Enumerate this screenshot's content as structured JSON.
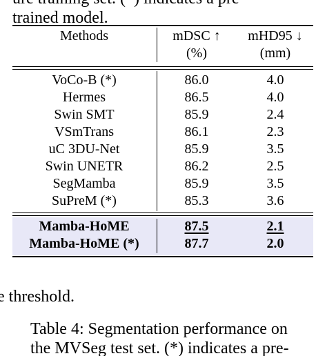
{
  "text": {
    "top_line_1": "ure training set. (*) indicates a pre-",
    "top_line_2": "trained model.",
    "mid_text": "e threshold.",
    "caption_line_1": "Table 4: Segmentation performance on",
    "caption_line_2": "the MVSeg test set. (*) indicates a pre-"
  },
  "table": {
    "headers": {
      "methods": "Methods",
      "mdsc_1": "mDSC ↑",
      "mdsc_2": "(%)",
      "mhd95_1": "mHD95 ↓",
      "mhd95_2": "(mm)"
    },
    "rows": [
      {
        "method": "VoCo-B (*)",
        "mdsc": "86.0",
        "mhd95": "4.0"
      },
      {
        "method": "Hermes",
        "mdsc": "86.5",
        "mhd95": "4.0"
      },
      {
        "method": "Swin SMT",
        "mdsc": "85.9",
        "mhd95": "2.4"
      },
      {
        "method": "VSmTrans",
        "mdsc": "86.1",
        "mhd95": "2.3"
      },
      {
        "method": "uC 3DU-Net",
        "mdsc": "85.9",
        "mhd95": "3.5"
      },
      {
        "method": "Swin UNETR",
        "mdsc": "86.2",
        "mhd95": "2.5"
      },
      {
        "method": "SegMamba",
        "mdsc": "85.9",
        "mhd95": "3.5"
      },
      {
        "method": "SuPreM (*)",
        "mdsc": "85.3",
        "mhd95": "3.6"
      }
    ],
    "highlight_rows": [
      {
        "method": "Mamba-HoME",
        "mdsc": "87.5",
        "mhd95": "2.1"
      },
      {
        "method": "Mamba-HoME (*)",
        "mdsc": "87.7",
        "mhd95": "2.0"
      }
    ]
  }
}
